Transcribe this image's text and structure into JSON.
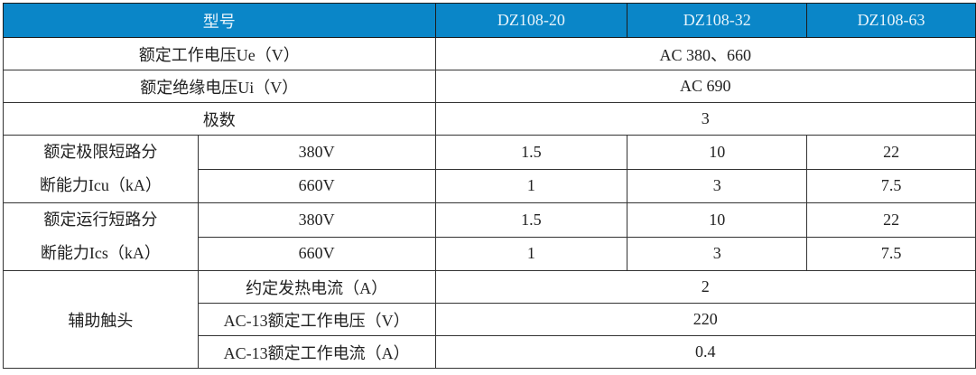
{
  "header": {
    "model_label": "型号",
    "models": [
      "DZ108-20",
      "DZ108-32",
      "DZ108-63"
    ]
  },
  "colors": {
    "header_bg": "#0a86c8",
    "header_text": "#e8f4fb"
  },
  "rows": {
    "rated_voltage": {
      "label": "额定工作电压Ue（V）",
      "value": "AC 380、660"
    },
    "insulation_voltage": {
      "label": "额定绝缘电压Ui（V）",
      "value": "AC 690"
    },
    "poles": {
      "label": "极数",
      "value": "3"
    },
    "icu": {
      "label_line1": "额定极限短路分",
      "label_line2": "断能力Icu（kA）",
      "sub": [
        {
          "voltage": "380V",
          "values": [
            "1.5",
            "10",
            "22"
          ]
        },
        {
          "voltage": "660V",
          "values": [
            "1",
            "3",
            "7.5"
          ]
        }
      ]
    },
    "ics": {
      "label_line1": "额定运行短路分",
      "label_line2": "断能力Ics（kA）",
      "sub": [
        {
          "voltage": "380V",
          "values": [
            "1.5",
            "10",
            "22"
          ]
        },
        {
          "voltage": "660V",
          "values": [
            "1",
            "3",
            "7.5"
          ]
        }
      ]
    },
    "aux": {
      "label": "辅助触头",
      "sub": [
        {
          "label": "约定发热电流（A）",
          "value": "2"
        },
        {
          "label": "AC-13额定工作电压（V）",
          "value": "220"
        },
        {
          "label": "AC-13额定工作电流（A）",
          "value": "0.4"
        }
      ]
    }
  }
}
